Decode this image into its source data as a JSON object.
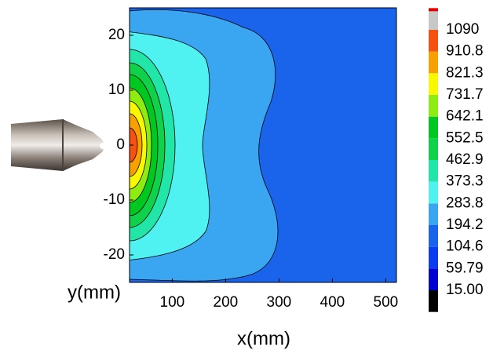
{
  "chart_data": {
    "type": "contour",
    "xlabel": "x(mm)",
    "ylabel": "y(mm)",
    "xlim": [
      20,
      520
    ],
    "xticks": [
      100,
      200,
      300,
      400,
      500
    ],
    "ylim": [
      -25,
      25
    ],
    "yticks": [
      -20,
      -10,
      0,
      10,
      20
    ],
    "colorbar": {
      "ticks": [
        {
          "value": 15,
          "label": "15.00"
        },
        59.79,
        104.6,
        194.2,
        283.8,
        373.3,
        462.9,
        552.5,
        642.1,
        731.7,
        821.3,
        910.8,
        1090
      ],
      "colors": [
        "#000000",
        "#0000d0",
        "#0a3cf0",
        "#1a64ec",
        "#3aa6f2",
        "#4ff2f0",
        "#22e6a8",
        "#10d24a",
        "#00c820",
        "#8eec10",
        "#f8f800",
        "#f8a000",
        "#f85010",
        "#e80000",
        "#c8c8c8"
      ]
    }
  }
}
